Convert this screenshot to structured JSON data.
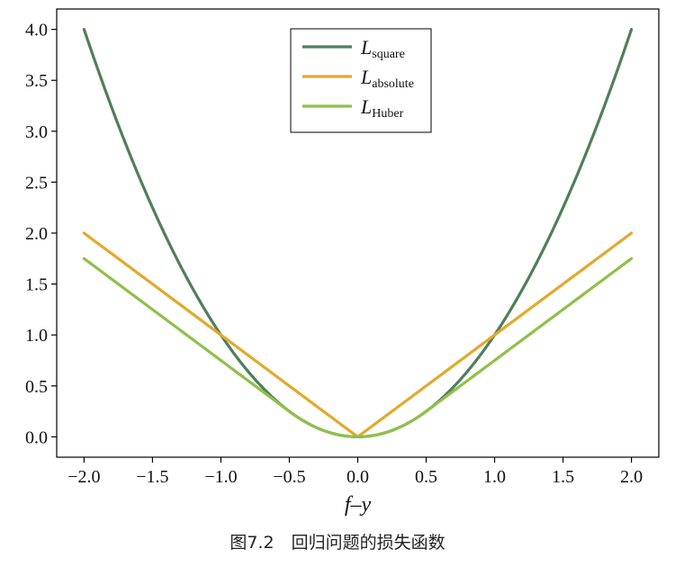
{
  "chart_data": {
    "type": "line",
    "xlabel": "f–y",
    "xlim": [
      -2.2,
      2.2
    ],
    "ylim": [
      -0.2,
      4.2
    ],
    "xticks": [
      -2.0,
      -1.5,
      -1.0,
      -0.5,
      0.0,
      0.5,
      1.0,
      1.5,
      2.0
    ],
    "xtick_labels": [
      "−2.0",
      "−1.5",
      "−1.0",
      "−0.5",
      "0.0",
      "0.5",
      "1.0",
      "1.5",
      "2.0"
    ],
    "yticks": [
      0.0,
      0.5,
      1.0,
      1.5,
      2.0,
      2.5,
      3.0,
      3.5,
      4.0
    ],
    "ytick_labels": [
      "0.0",
      "0.5",
      "1.0",
      "1.5",
      "2.0",
      "2.5",
      "3.0",
      "3.5",
      "4.0"
    ],
    "grid": false,
    "legend_position": "top-center",
    "series": [
      {
        "name": "L_square",
        "name_main": "L",
        "name_sub": "square",
        "color": "#4f7f5a",
        "x": [
          -2.0,
          -1.75,
          -1.5,
          -1.25,
          -1.0,
          -0.75,
          -0.5,
          -0.25,
          0.0,
          0.25,
          0.5,
          0.75,
          1.0,
          1.25,
          1.5,
          1.75,
          2.0
        ],
        "y": [
          4.0,
          3.06,
          2.25,
          1.56,
          1.0,
          0.56,
          0.25,
          0.06,
          0.0,
          0.06,
          0.25,
          0.56,
          1.0,
          1.56,
          2.25,
          3.06,
          4.0
        ]
      },
      {
        "name": "L_absolute",
        "name_main": "L",
        "name_sub": "absolute",
        "color": "#e3a92a",
        "x": [
          -2.0,
          -1.0,
          0.0,
          1.0,
          2.0
        ],
        "y": [
          2.0,
          1.0,
          0.0,
          1.0,
          2.0
        ]
      },
      {
        "name": "L_Huber",
        "name_main": "L",
        "name_sub": "Huber",
        "color": "#8fc04a",
        "x": [
          -2.0,
          -1.5,
          -1.0,
          -0.5,
          -0.375,
          -0.25,
          -0.125,
          0.0,
          0.125,
          0.25,
          0.375,
          0.5,
          1.0,
          1.5,
          2.0
        ],
        "y": [
          1.75,
          1.25,
          0.75,
          0.25,
          0.14,
          0.06,
          0.016,
          0.0,
          0.016,
          0.06,
          0.14,
          0.25,
          0.75,
          1.25,
          1.75
        ]
      }
    ]
  },
  "caption": "图7.2　回归问题的损失函数"
}
